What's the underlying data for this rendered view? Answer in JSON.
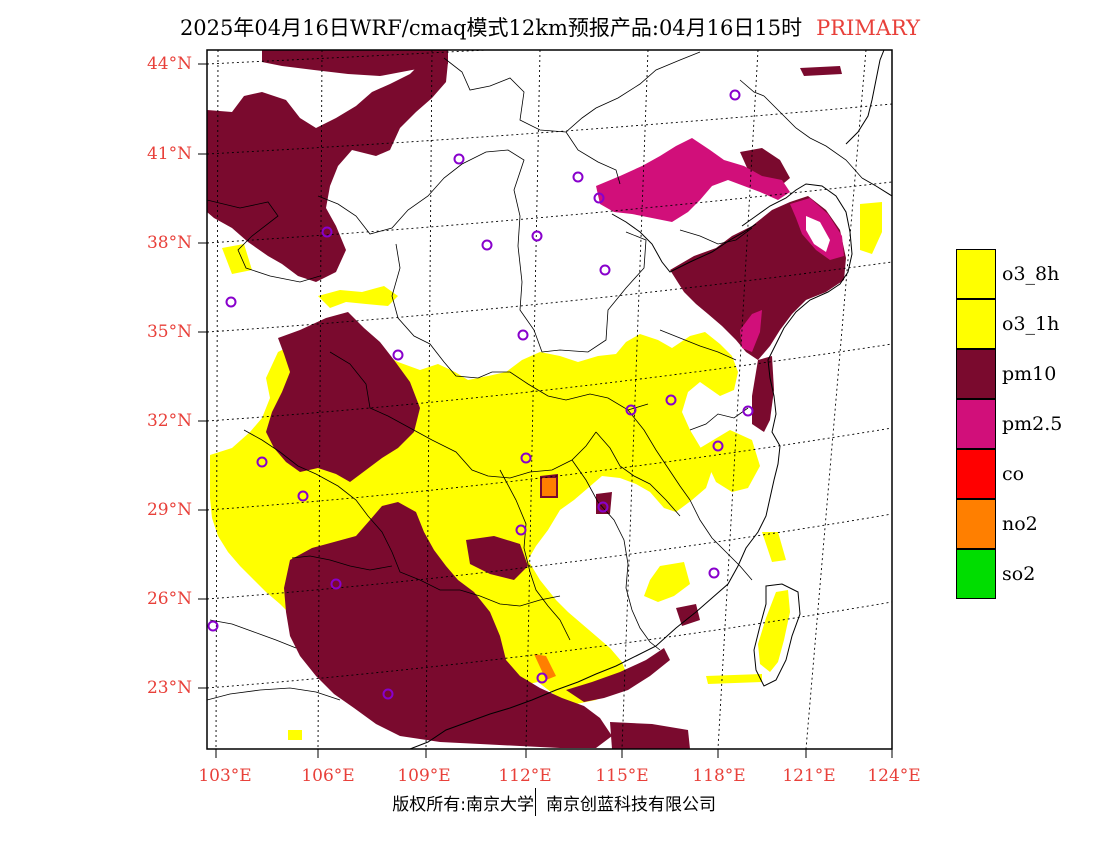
{
  "title": {
    "main": "2025年04月16日WRF/cmaq模式12km预报产品:04月16日15时",
    "tag": "PRIMARY"
  },
  "colors": {
    "o3_8h": "#ffff00",
    "o3_1h": "#ffff00",
    "pm10": "#7a0a2e",
    "pm25": "#d10f7a",
    "co": "#ff0000",
    "no2": "#ff7f00",
    "so2": "#00dd00",
    "label_red": "#e8403a",
    "city_marker": "#8800cc"
  },
  "map": {
    "lat_labels": [
      "44°N",
      "41°N",
      "38°N",
      "35°N",
      "32°N",
      "29°N",
      "26°N",
      "23°N"
    ],
    "lon_labels": [
      "103°E",
      "106°E",
      "109°E",
      "112°E",
      "115°E",
      "118°E",
      "121°E",
      "124°E"
    ],
    "city_marker_icon": "circle-marker-icon"
  },
  "legend": [
    {
      "label": "o3_8h",
      "color": "#ffff00"
    },
    {
      "label": "o3_1h",
      "color": "#ffff00"
    },
    {
      "label": "pm10",
      "color": "#7a0a2e"
    },
    {
      "label": "pm2.5",
      "color": "#d10f7a"
    },
    {
      "label": "co",
      "color": "#ff0000"
    },
    {
      "label": "no2",
      "color": "#ff7f00"
    },
    {
      "label": "so2",
      "color": "#00dd00"
    }
  ],
  "copyright": {
    "left": "版权所有:南京大学",
    "right": "南京创蓝科技有限公司"
  }
}
